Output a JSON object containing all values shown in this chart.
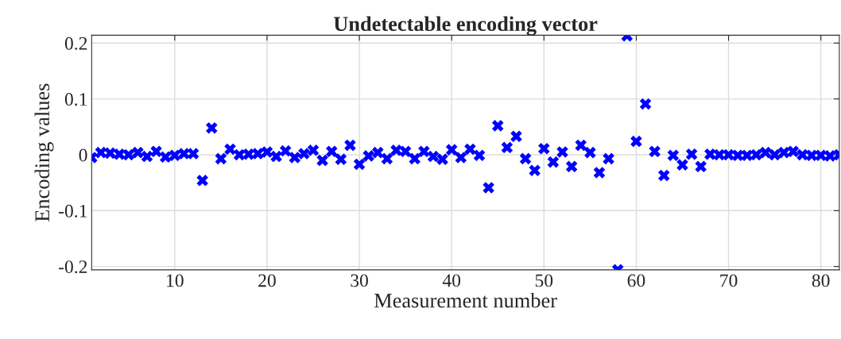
{
  "chart_data": {
    "type": "scatter",
    "title": "Undetectable encoding vector",
    "xlabel": "Measurement number",
    "ylabel": "Encoding values",
    "x": [
      1,
      2,
      3,
      4,
      5,
      6,
      7,
      8,
      9,
      10,
      11,
      12,
      13,
      14,
      15,
      16,
      17,
      18,
      19,
      20,
      21,
      22,
      23,
      24,
      25,
      26,
      27,
      28,
      29,
      30,
      31,
      32,
      33,
      34,
      35,
      36,
      37,
      38,
      39,
      40,
      41,
      42,
      43,
      44,
      45,
      46,
      47,
      48,
      49,
      50,
      51,
      52,
      53,
      54,
      55,
      56,
      57,
      58,
      59,
      60,
      61,
      62,
      63,
      64,
      65,
      66,
      67,
      68,
      69,
      70,
      71,
      72,
      73,
      74,
      75,
      76,
      77,
      78,
      79,
      80,
      81,
      82
    ],
    "series": [
      {
        "color": "#0000ff",
        "values": [
          -0.005,
          0.004,
          0.003,
          0.001,
          0.0,
          0.004,
          -0.003,
          0.006,
          -0.004,
          -0.001,
          0.002,
          0.002,
          -0.046,
          0.048,
          -0.007,
          0.01,
          0.0,
          0.001,
          0.002,
          0.005,
          -0.003,
          0.007,
          -0.005,
          0.002,
          0.008,
          -0.01,
          0.006,
          -0.008,
          0.017,
          -0.017,
          -0.002,
          0.004,
          -0.007,
          0.008,
          0.006,
          -0.007,
          0.006,
          -0.003,
          -0.008,
          0.009,
          -0.005,
          0.01,
          -0.001,
          -0.059,
          0.052,
          0.013,
          0.033,
          -0.007,
          -0.028,
          0.011,
          -0.013,
          0.005,
          -0.021,
          0.017,
          0.004,
          -0.032,
          -0.007,
          -0.206,
          0.213,
          0.024,
          0.091,
          0.006,
          -0.037,
          -0.001,
          -0.018,
          0.001,
          -0.021,
          0.001,
          0.0,
          0.0,
          -0.001,
          -0.001,
          0.0,
          0.004,
          0.0,
          0.004,
          0.006,
          0.0,
          -0.001,
          -0.001,
          -0.002,
          0.0
        ]
      }
    ],
    "xlim": [
      1,
      82
    ],
    "ylim": [
      -0.206,
      0.214
    ],
    "xticks": [
      10,
      20,
      30,
      40,
      50,
      60,
      70,
      80
    ],
    "yticks": [
      -0.2,
      -0.1,
      0,
      0.1,
      0.2
    ],
    "grid": true,
    "marker": "cross",
    "legend": false
  }
}
